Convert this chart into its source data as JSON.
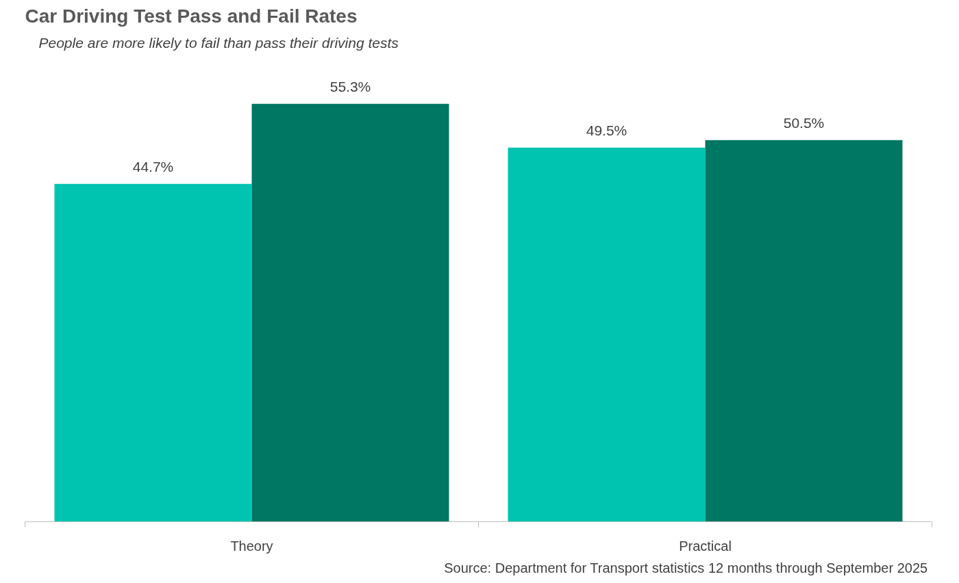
{
  "chart_data": {
    "type": "bar",
    "title": "Car Driving Test Pass and Fail Rates",
    "subtitle": "People are more likely to fail than pass their driving tests",
    "categories": [
      "Theory",
      "Practical"
    ],
    "series": [
      {
        "color": "#00c4b0",
        "values": [
          44.7,
          49.5
        ],
        "value_labels": [
          "44.7%",
          "49.5%"
        ]
      },
      {
        "color": "#007762",
        "values": [
          55.3,
          50.5
        ],
        "value_labels": [
          "55.3%",
          "50.5%"
        ]
      }
    ],
    "grid": false,
    "annotations": [
      "Source: Department for Transport statistics 12 months through September 2025"
    ]
  }
}
